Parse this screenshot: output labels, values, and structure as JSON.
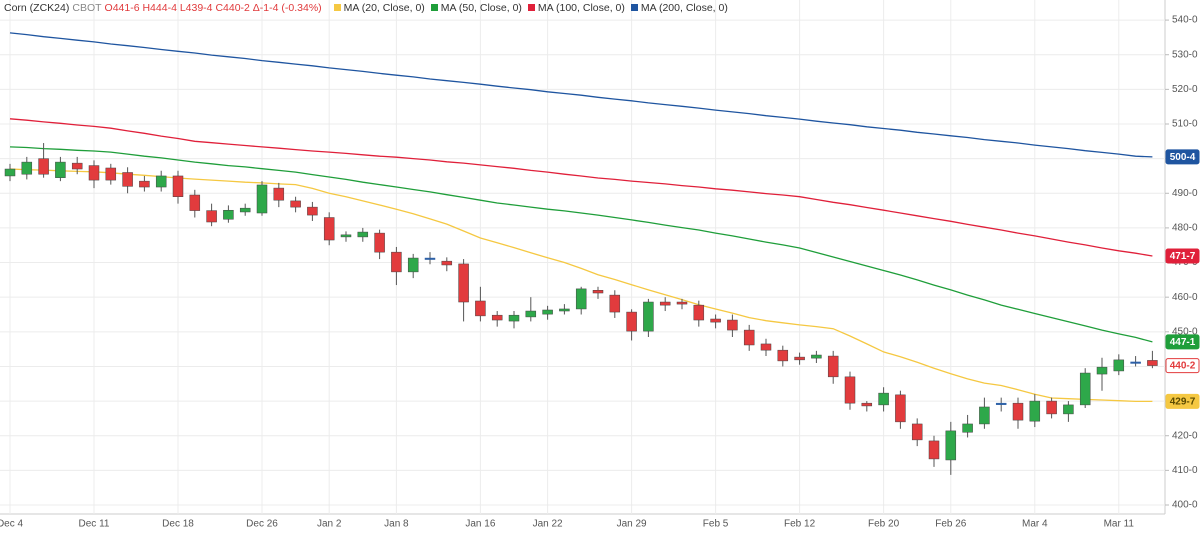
{
  "chart_data": {
    "type": "candlestick",
    "symbol": "Corn (ZCK24)",
    "exchange": "CBOT",
    "ohlc_text": "O441-6 H444-4 L439-4 C440-2 Δ-1-4 (-0.34%)",
    "categories": [
      "Dec 4",
      null,
      null,
      null,
      null,
      "Dec 11",
      null,
      null,
      null,
      null,
      "Dec 18",
      null,
      null,
      null,
      null,
      "Dec 26",
      null,
      null,
      null,
      "Jan 2",
      null,
      null,
      null,
      "Jan 8",
      null,
      null,
      null,
      null,
      "Jan 16",
      null,
      null,
      null,
      "Jan 22",
      null,
      null,
      null,
      null,
      "Jan 29",
      null,
      null,
      null,
      null,
      "Feb 5",
      null,
      null,
      null,
      null,
      "Feb 12",
      null,
      null,
      null,
      null,
      "Feb 20",
      null,
      null,
      null,
      "Feb 26",
      null,
      null,
      null,
      null,
      "Mar 4",
      null,
      null,
      null,
      null,
      "Mar 11",
      null,
      null
    ],
    "open": [
      495,
      495.5,
      500,
      494.5,
      498.7,
      498,
      497.3,
      496,
      493.5,
      491.8,
      495,
      489.5,
      485,
      482.5,
      484.6,
      484.3,
      491.5,
      487.8,
      486,
      483,
      477.4,
      477.4,
      478.5,
      473,
      467.3,
      471.3,
      470.4,
      469.6,
      458.9,
      454.8,
      453.1,
      454.3,
      455.1,
      456,
      456.6,
      462,
      460.6,
      455.7,
      450.2,
      458.6,
      458.6,
      457.7,
      453.7,
      453.4,
      450.5,
      446.5,
      444.7,
      442.7,
      442.4,
      443,
      437,
      429.4,
      428.9,
      431.8,
      423.4,
      418.5,
      413,
      421,
      423.4,
      429.4,
      429.4,
      424.2,
      430,
      426.3,
      428.9,
      437.8,
      438.7,
      441.3,
      441.75
    ],
    "high": [
      498.5,
      500.5,
      504.5,
      500.5,
      500.5,
      499.5,
      498.5,
      497.5,
      495,
      496.5,
      496.5,
      491,
      487,
      486.5,
      487,
      493.5,
      493,
      489,
      487.5,
      484.5,
      479,
      480,
      479.5,
      474.5,
      472.5,
      473,
      471.5,
      471,
      463,
      456,
      456,
      460,
      457.5,
      458,
      463,
      463,
      462,
      456.5,
      459.5,
      460,
      459.5,
      459,
      455,
      455,
      452,
      448,
      446,
      444,
      444.5,
      444.5,
      438.5,
      430,
      434,
      433,
      425,
      420,
      424,
      426,
      431,
      431,
      431,
      432,
      431,
      430,
      439.5,
      442.5,
      443.5,
      443,
      444.5
    ],
    "low": [
      493.5,
      494,
      494.5,
      493.5,
      495.5,
      491.5,
      492.5,
      490,
      490.5,
      490.5,
      487,
      483,
      480.5,
      481.5,
      483.5,
      483.5,
      486,
      484.5,
      482,
      475,
      476,
      476,
      471,
      463.5,
      465.5,
      469.5,
      467.5,
      453,
      453,
      451.5,
      451,
      453,
      453.5,
      455,
      455,
      459.5,
      454,
      447.5,
      448.5,
      456,
      456.5,
      451.5,
      451,
      448.5,
      444.5,
      443,
      440,
      440.5,
      441,
      435,
      427.5,
      427,
      427,
      422,
      417,
      411,
      408.7,
      419.5,
      422,
      427,
      422,
      422.5,
      425,
      424,
      428,
      433,
      437.5,
      440,
      439.5
    ],
    "close": [
      497,
      499,
      495.5,
      499,
      497,
      493.8,
      493.8,
      492,
      491.8,
      495,
      489,
      485,
      481.7,
      485.1,
      485.7,
      492.4,
      488,
      486,
      483.7,
      476.5,
      478,
      478.8,
      473,
      467.3,
      471.3,
      471.3,
      469.3,
      458.6,
      454.6,
      453.4,
      454.8,
      456,
      456.3,
      456.6,
      462.4,
      461.2,
      455.7,
      450.2,
      458.6,
      457.7,
      458,
      453.4,
      452.8,
      450.5,
      446.2,
      444.7,
      441.6,
      441.9,
      443.3,
      437,
      429.4,
      428.6,
      432.3,
      424,
      418.8,
      413.3,
      421.4,
      423.4,
      428.3,
      429.4,
      424.5,
      430,
      426.3,
      428.9,
      438.1,
      439.8,
      441.9,
      441.3,
      440.25
    ],
    "last_label": "440-2",
    "color_up": "#2ea84a",
    "color_down": "#e23b3d",
    "color_flat": "#2b5fa6",
    "series": [
      {
        "name": "MA (20, Close, 0)",
        "color": "#f5c842",
        "last_label": "429-7",
        "values": [
          497.0,
          496.8,
          496.7,
          496.5,
          496.3,
          496.2,
          495.9,
          495.5,
          495.2,
          494.8,
          494.4,
          494.1,
          493.8,
          493.5,
          493.2,
          493.0,
          492.7,
          492.5,
          491.4,
          490.0,
          489.0,
          487.8,
          486.6,
          485.4,
          484.1,
          482.6,
          481.1,
          479.1,
          477.1,
          475.7,
          474.3,
          472.8,
          471.4,
          470.0,
          468.3,
          466.5,
          465.1,
          463.6,
          462.1,
          460.7,
          459.3,
          457.8,
          456.6,
          455.4,
          454.1,
          453.2,
          452.6,
          452.0,
          451.5,
          450.9,
          448.8,
          446.5,
          444.2,
          442.8,
          441.2,
          439.5,
          437.9,
          436.4,
          435.2,
          434.5,
          433.3,
          432.0,
          430.9,
          430.7,
          430.5,
          430.3,
          430.1,
          429.9,
          429.9
        ]
      },
      {
        "name": "MA (50, Close, 0)",
        "color": "#1f9e3a",
        "last_label": "447-1",
        "values": [
          503.4,
          503.2,
          502.9,
          502.7,
          502.4,
          502.2,
          501.9,
          501.3,
          500.7,
          500.2,
          499.6,
          499.0,
          498.5,
          498.0,
          497.6,
          497.1,
          496.6,
          496.1,
          495.4,
          494.7,
          494.0,
          493.2,
          492.5,
          491.8,
          491.1,
          490.4,
          489.6,
          488.8,
          488.0,
          487.2,
          486.6,
          486.0,
          485.4,
          484.9,
          484.3,
          483.7,
          483.0,
          482.3,
          481.6,
          480.8,
          480.1,
          479.4,
          478.5,
          477.7,
          476.8,
          475.9,
          475.1,
          474.2,
          472.9,
          471.6,
          470.3,
          469.0,
          467.7,
          466.4,
          465.0,
          463.5,
          462.1,
          460.6,
          459.2,
          457.7,
          456.5,
          455.3,
          454.1,
          452.9,
          451.7,
          450.5,
          449.4,
          448.4,
          447.1
        ]
      },
      {
        "name": "MA (100, Close, 0)",
        "color": "#e0203a",
        "last_label": "471-7",
        "values": [
          511.5,
          511.1,
          510.6,
          510.2,
          509.7,
          509.3,
          508.8,
          508.0,
          507.3,
          506.5,
          505.8,
          505.0,
          504.6,
          504.2,
          503.8,
          503.4,
          503.0,
          502.6,
          502.2,
          501.9,
          501.5,
          501.1,
          500.7,
          500.4,
          500.0,
          499.6,
          499.1,
          498.7,
          498.2,
          497.7,
          497.2,
          496.6,
          496.1,
          495.5,
          495.0,
          494.4,
          494.0,
          493.5,
          493.1,
          492.7,
          492.2,
          491.8,
          491.3,
          490.9,
          490.4,
          489.9,
          489.5,
          489.0,
          488.2,
          487.4,
          486.7,
          485.9,
          485.1,
          484.3,
          483.5,
          482.7,
          481.9,
          481.0,
          480.2,
          479.4,
          478.5,
          477.7,
          476.8,
          475.9,
          475.1,
          474.2,
          473.4,
          472.7,
          471.9
        ]
      },
      {
        "name": "MA (200, Close, 0)",
        "color": "#1f55a0",
        "last_label": "500-4",
        "values": [
          536.3,
          535.8,
          535.2,
          534.7,
          534.2,
          533.7,
          533.1,
          532.6,
          532.1,
          531.5,
          531.0,
          530.5,
          529.9,
          529.4,
          528.9,
          528.3,
          527.8,
          527.3,
          526.8,
          526.2,
          525.7,
          525.2,
          524.6,
          524.1,
          523.6,
          523.0,
          522.5,
          522.0,
          521.5,
          520.9,
          520.4,
          519.9,
          519.3,
          518.8,
          518.3,
          517.7,
          517.2,
          516.7,
          516.1,
          515.6,
          515.1,
          514.6,
          514.0,
          513.5,
          513.0,
          512.4,
          511.9,
          511.4,
          510.8,
          510.3,
          509.8,
          509.2,
          508.7,
          508.2,
          507.6,
          507.1,
          506.6,
          506.1,
          505.5,
          505.0,
          504.5,
          503.9,
          503.4,
          502.9,
          502.3,
          501.8,
          501.3,
          500.7,
          500.5
        ]
      }
    ],
    "ylim": [
      397.4,
      545.8
    ],
    "yticks": [
      {
        "value": 400,
        "label": "400-0"
      },
      {
        "value": 410,
        "label": "410-0"
      },
      {
        "value": 420,
        "label": "420-0"
      },
      {
        "value": 430,
        "label": "430-0"
      },
      {
        "value": 440,
        "label": "440-0"
      },
      {
        "value": 450,
        "label": "450-0"
      },
      {
        "value": 460,
        "label": "460-0"
      },
      {
        "value": 470,
        "label": "470-0"
      },
      {
        "value": 480,
        "label": "480-0"
      },
      {
        "value": 490,
        "label": "490-0"
      },
      {
        "value": 500,
        "label": "500-0"
      },
      {
        "value": 510,
        "label": "510-0"
      },
      {
        "value": 520,
        "label": "520-0"
      },
      {
        "value": 530,
        "label": "530-0"
      },
      {
        "value": 540,
        "label": "540-0"
      }
    ],
    "grid": true
  }
}
